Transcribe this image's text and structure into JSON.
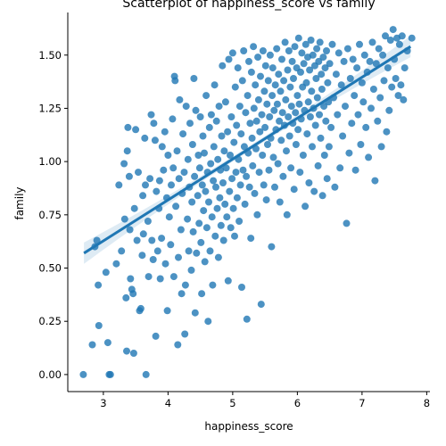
{
  "chart_data": {
    "type": "scatter",
    "title": "Scatterplot of happiness_score vs family",
    "xlabel": "happiness_score",
    "ylabel": "family",
    "xlim": [
      2.45,
      8.05
    ],
    "ylim": [
      -0.08,
      1.7
    ],
    "xticks": [
      3,
      4,
      5,
      6,
      7,
      8
    ],
    "xtick_labels": [
      "3",
      "4",
      "5",
      "6",
      "7",
      "8"
    ],
    "yticks": [
      0.0,
      0.25,
      0.5,
      0.75,
      1.0,
      1.25,
      1.5
    ],
    "ytick_labels": [
      "0.00",
      "0.25",
      "0.50",
      "0.75",
      "1.00",
      "1.25",
      "1.50"
    ],
    "grid": false,
    "regression": {
      "x": [
        2.7,
        7.75
      ],
      "y": [
        0.57,
        1.54
      ],
      "ci_halfwidth_ends": 0.05,
      "ci_halfwidth_center": 0.012,
      "color": "#1f77b4"
    },
    "point_color": "#1f77b4",
    "points": [
      [
        2.69,
        0.0
      ],
      [
        2.83,
        0.14
      ],
      [
        2.9,
        0.63
      ],
      [
        2.87,
        0.6
      ],
      [
        2.92,
        0.42
      ],
      [
        2.93,
        0.23
      ],
      [
        3.04,
        0.48
      ],
      [
        3.07,
        0.15
      ],
      [
        3.09,
        0.0
      ],
      [
        3.11,
        0.0
      ],
      [
        3.2,
        0.52
      ],
      [
        3.24,
        0.89
      ],
      [
        3.28,
        0.58
      ],
      [
        3.32,
        0.99
      ],
      [
        3.33,
        0.73
      ],
      [
        3.35,
        0.36
      ],
      [
        3.36,
        0.11
      ],
      [
        3.37,
        1.05
      ],
      [
        3.38,
        1.16
      ],
      [
        3.4,
        0.93
      ],
      [
        3.41,
        0.68
      ],
      [
        3.42,
        0.45
      ],
      [
        3.44,
        0.4
      ],
      [
        3.46,
        0.38
      ],
      [
        3.47,
        0.1
      ],
      [
        3.48,
        0.78
      ],
      [
        3.5,
        1.15
      ],
      [
        3.52,
        0.63
      ],
      [
        3.54,
        0.95
      ],
      [
        3.56,
        0.3
      ],
      [
        3.58,
        0.31
      ],
      [
        3.6,
        0.56
      ],
      [
        3.61,
        0.84
      ],
      [
        3.62,
        0.66
      ],
      [
        3.64,
        1.11
      ],
      [
        3.65,
        0.89
      ],
      [
        3.66,
        0.0
      ],
      [
        3.69,
        0.72
      ],
      [
        3.7,
        0.46
      ],
      [
        3.72,
        0.92
      ],
      [
        3.74,
        1.22
      ],
      [
        3.75,
        0.63
      ],
      [
        3.77,
        0.54
      ],
      [
        3.78,
        1.18
      ],
      [
        3.8,
        1.1
      ],
      [
        3.81,
        0.18
      ],
      [
        3.82,
        0.86
      ],
      [
        3.84,
        0.58
      ],
      [
        3.86,
        0.78
      ],
      [
        3.87,
        0.91
      ],
      [
        3.88,
        0.45
      ],
      [
        3.9,
        0.64
      ],
      [
        3.91,
        1.07
      ],
      [
        3.93,
        0.96
      ],
      [
        3.95,
        1.14
      ],
      [
        3.96,
        0.52
      ],
      [
        3.98,
        0.83
      ],
      [
        3.99,
        0.3
      ],
      [
        4.0,
        1.03
      ],
      [
        4.02,
        0.74
      ],
      [
        4.04,
        0.61
      ],
      [
        4.05,
        0.89
      ],
      [
        4.07,
        1.2
      ],
      [
        4.08,
        0.97
      ],
      [
        4.09,
        0.46
      ],
      [
        4.1,
        1.4
      ],
      [
        4.11,
        1.38
      ],
      [
        4.12,
        0.79
      ],
      [
        4.14,
        1.05
      ],
      [
        4.15,
        0.14
      ],
      [
        4.16,
        0.55
      ],
      [
        4.17,
        0.92
      ],
      [
        4.18,
        1.29
      ],
      [
        4.2,
        0.68
      ],
      [
        4.21,
        0.38
      ],
      [
        4.22,
        0.85
      ],
      [
        4.23,
        1.13
      ],
      [
        4.25,
        0.95
      ],
      [
        4.26,
        0.19
      ],
      [
        4.27,
        0.42
      ],
      [
        4.28,
        1.26
      ],
      [
        4.3,
        0.73
      ],
      [
        4.31,
        1.01
      ],
      [
        4.32,
        0.58
      ],
      [
        4.33,
        0.88
      ],
      [
        4.34,
        1.18
      ],
      [
        4.36,
        0.49
      ],
      [
        4.37,
        0.81
      ],
      [
        4.38,
        1.08
      ],
      [
        4.39,
        0.67
      ],
      [
        4.4,
        1.39
      ],
      [
        4.41,
        0.93
      ],
      [
        4.42,
        0.29
      ],
      [
        4.43,
        1.24
      ],
      [
        4.44,
        0.57
      ],
      [
        4.46,
        0.84
      ],
      [
        4.47,
        1.03
      ],
      [
        4.48,
        0.71
      ],
      [
        4.49,
        0.97
      ],
      [
        4.5,
        1.21
      ],
      [
        4.51,
        0.62
      ],
      [
        4.52,
        0.38
      ],
      [
        4.53,
        0.89
      ],
      [
        4.54,
        1.12
      ],
      [
        4.55,
        0.77
      ],
      [
        4.56,
        1.04
      ],
      [
        4.57,
        0.53
      ],
      [
        4.58,
        0.86
      ],
      [
        4.59,
        1.31
      ],
      [
        4.6,
        0.69
      ],
      [
        4.61,
        0.95
      ],
      [
        4.62,
        0.25
      ],
      [
        4.63,
        0.81
      ],
      [
        4.64,
        1.16
      ],
      [
        4.65,
        0.58
      ],
      [
        4.66,
        0.99
      ],
      [
        4.67,
        1.22
      ],
      [
        4.68,
        0.74
      ],
      [
        4.69,
        0.42
      ],
      [
        4.7,
        0.91
      ],
      [
        4.71,
        1.07
      ],
      [
        4.72,
        1.36
      ],
      [
        4.73,
        0.65
      ],
      [
        4.74,
        0.88
      ],
      [
        4.75,
        1.19
      ],
      [
        4.76,
        0.78
      ],
      [
        4.77,
        1.01
      ],
      [
        4.78,
        0.55
      ],
      [
        4.79,
        1.26
      ],
      [
        4.8,
        0.83
      ],
      [
        4.81,
        0.96
      ],
      [
        4.82,
        0.7
      ],
      [
        4.83,
        1.12
      ],
      [
        4.84,
        1.45
      ],
      [
        4.85,
        0.9
      ],
      [
        4.86,
        0.63
      ],
      [
        4.87,
        1.05
      ],
      [
        4.88,
        0.8
      ],
      [
        4.89,
        1.28
      ],
      [
        4.9,
        0.97
      ],
      [
        4.91,
        0.74
      ],
      [
        4.92,
        1.14
      ],
      [
        4.93,
        0.44
      ],
      [
        4.94,
        1.48
      ],
      [
        4.95,
        0.86
      ],
      [
        4.96,
        1.03
      ],
      [
        4.97,
        0.69
      ],
      [
        4.98,
        1.21
      ],
      [
        4.99,
        0.92
      ],
      [
        5.0,
        1.51
      ],
      [
        5.01,
        0.78
      ],
      [
        5.02,
        1.09
      ],
      [
        5.03,
        0.65
      ],
      [
        5.04,
        1.35
      ],
      [
        5.05,
        0.95
      ],
      [
        5.06,
        1.17
      ],
      [
        5.07,
        0.83
      ],
      [
        5.08,
        1.44
      ],
      [
        5.09,
        1.01
      ],
      [
        5.1,
        0.72
      ],
      [
        5.11,
        1.26
      ],
      [
        5.12,
        0.89
      ],
      [
        5.13,
        1.13
      ],
      [
        5.14,
        0.41
      ],
      [
        5.15,
        1.38
      ],
      [
        5.16,
        0.96
      ],
      [
        5.17,
        1.52
      ],
      [
        5.18,
        1.07
      ],
      [
        5.19,
        0.8
      ],
      [
        5.2,
        1.23
      ],
      [
        5.21,
        0.93
      ],
      [
        5.22,
        0.26
      ],
      [
        5.23,
        1.31
      ],
      [
        5.24,
        1.04
      ],
      [
        5.25,
        1.47
      ],
      [
        5.26,
        0.88
      ],
      [
        5.27,
        1.18
      ],
      [
        5.28,
        0.64
      ],
      [
        5.29,
        1.42
      ],
      [
        5.3,
        1.11
      ],
      [
        5.31,
        0.98
      ],
      [
        5.32,
        1.54
      ],
      [
        5.33,
        1.25
      ],
      [
        5.34,
        0.85
      ],
      [
        5.35,
        1.36
      ],
      [
        5.36,
        1.06
      ],
      [
        5.37,
        1.19
      ],
      [
        5.38,
        0.75
      ],
      [
        5.39,
        1.49
      ],
      [
        5.4,
        1.29
      ],
      [
        5.41,
        0.95
      ],
      [
        5.42,
        1.14
      ],
      [
        5.43,
        1.4
      ],
      [
        5.44,
        0.33
      ],
      [
        5.45,
        1.22
      ],
      [
        5.46,
        1.03
      ],
      [
        5.47,
        1.52
      ],
      [
        5.48,
        0.89
      ],
      [
        5.49,
        1.33
      ],
      [
        5.5,
        1.16
      ],
      [
        5.51,
        1.45
      ],
      [
        5.52,
        0.82
      ],
      [
        5.53,
        1.27
      ],
      [
        5.54,
        1.08
      ],
      [
        5.55,
        1.38
      ],
      [
        5.56,
        0.96
      ],
      [
        5.57,
        1.21
      ],
      [
        5.58,
        1.5
      ],
      [
        5.59,
        1.11
      ],
      [
        5.6,
        0.6
      ],
      [
        5.61,
        1.31
      ],
      [
        5.62,
        1.44
      ],
      [
        5.63,
        1.02
      ],
      [
        5.64,
        1.24
      ],
      [
        5.65,
        0.88
      ],
      [
        5.66,
        1.36
      ],
      [
        5.67,
        1.15
      ],
      [
        5.68,
        1.53
      ],
      [
        5.69,
        1.27
      ],
      [
        5.7,
        0.99
      ],
      [
        5.71,
        1.41
      ],
      [
        5.72,
        1.19
      ],
      [
        5.73,
        0.81
      ],
      [
        5.74,
        1.33
      ],
      [
        5.75,
        1.1
      ],
      [
        5.76,
        1.48
      ],
      [
        5.77,
        1.23
      ],
      [
        5.78,
        0.93
      ],
      [
        5.79,
        1.38
      ],
      [
        5.8,
        1.17
      ],
      [
        5.81,
        1.56
      ],
      [
        5.82,
        1.29
      ],
      [
        5.83,
        1.05
      ],
      [
        5.84,
        0.75
      ],
      [
        5.85,
        1.43
      ],
      [
        5.86,
        1.21
      ],
      [
        5.87,
        1.52
      ],
      [
        5.88,
        1.12
      ],
      [
        5.89,
        1.35
      ],
      [
        5.9,
        0.97
      ],
      [
        5.91,
        1.26
      ],
      [
        5.92,
        1.47
      ],
      [
        5.93,
        1.18
      ],
      [
        5.94,
        1.39
      ],
      [
        5.95,
        0.87
      ],
      [
        5.96,
        1.54
      ],
      [
        5.97,
        1.23
      ],
      [
        5.98,
        1.08
      ],
      [
        5.99,
        1.44
      ],
      [
        6.0,
        1.31
      ],
      [
        6.01,
        1.15
      ],
      [
        6.02,
        1.58
      ],
      [
        6.03,
        1.27
      ],
      [
        6.04,
        0.95
      ],
      [
        6.05,
        1.42
      ],
      [
        6.06,
        1.2
      ],
      [
        6.07,
        1.51
      ],
      [
        6.08,
        1.35
      ],
      [
        6.09,
        1.03
      ],
      [
        6.1,
        1.46
      ],
      [
        6.11,
        1.24
      ],
      [
        6.12,
        0.79
      ],
      [
        6.13,
        1.55
      ],
      [
        6.14,
        1.37
      ],
      [
        6.15,
        1.13
      ],
      [
        6.16,
        1.49
      ],
      [
        6.17,
        1.28
      ],
      [
        6.18,
        0.9
      ],
      [
        6.19,
        1.43
      ],
      [
        6.2,
        1.21
      ],
      [
        6.21,
        1.57
      ],
      [
        6.22,
        1.33
      ],
      [
        6.23,
        1.07
      ],
      [
        6.24,
        1.5
      ],
      [
        6.25,
        1.25
      ],
      [
        6.26,
        0.86
      ],
      [
        6.27,
        1.45
      ],
      [
        6.28,
        1.17
      ],
      [
        6.29,
        1.39
      ],
      [
        6.3,
        1.53
      ],
      [
        6.31,
        1.3
      ],
      [
        6.32,
        0.98
      ],
      [
        6.33,
        1.47
      ],
      [
        6.34,
        1.22
      ],
      [
        6.35,
        1.56
      ],
      [
        6.36,
        1.11
      ],
      [
        6.37,
        1.41
      ],
      [
        6.38,
        1.34
      ],
      [
        6.39,
        0.84
      ],
      [
        6.4,
        1.49
      ],
      [
        6.41,
        1.26
      ],
      [
        6.42,
        1.03
      ],
      [
        6.43,
        1.44
      ],
      [
        6.44,
        1.19
      ],
      [
        6.45,
        1.52
      ],
      [
        6.46,
        0.92
      ],
      [
        6.47,
        1.37
      ],
      [
        6.48,
        1.28
      ],
      [
        6.49,
        1.07
      ],
      [
        6.5,
        1.46
      ],
      [
        6.52,
        1.16
      ],
      [
        6.54,
        1.55
      ],
      [
        6.56,
        1.3
      ],
      [
        6.58,
        0.88
      ],
      [
        6.6,
        1.41
      ],
      [
        6.62,
        1.22
      ],
      [
        6.64,
        1.51
      ],
      [
        6.66,
        0.97
      ],
      [
        6.68,
        1.36
      ],
      [
        6.7,
        1.12
      ],
      [
        6.72,
        1.47
      ],
      [
        6.74,
        1.26
      ],
      [
        6.76,
        0.71
      ],
      [
        6.78,
        1.53
      ],
      [
        6.8,
        1.04
      ],
      [
        6.82,
        1.39
      ],
      [
        6.84,
        1.18
      ],
      [
        6.86,
        1.48
      ],
      [
        6.88,
        1.31
      ],
      [
        6.9,
        0.96
      ],
      [
        6.92,
        1.44
      ],
      [
        6.94,
        1.22
      ],
      [
        6.96,
        1.55
      ],
      [
        6.98,
        1.08
      ],
      [
        7.0,
        1.37
      ],
      [
        7.02,
        1.28
      ],
      [
        7.04,
        1.5
      ],
      [
        7.06,
        1.16
      ],
      [
        7.08,
        1.42
      ],
      [
        7.1,
        1.02
      ],
      [
        7.12,
        1.47
      ],
      [
        7.14,
        1.25
      ],
      [
        7.16,
        1.56
      ],
      [
        7.18,
        1.34
      ],
      [
        7.2,
        0.91
      ],
      [
        7.22,
        1.46
      ],
      [
        7.24,
        1.19
      ],
      [
        7.26,
        1.53
      ],
      [
        7.28,
        1.3
      ],
      [
        7.3,
        1.07
      ],
      [
        7.32,
        1.5
      ],
      [
        7.34,
        1.38
      ],
      [
        7.36,
        1.59
      ],
      [
        7.38,
        1.14
      ],
      [
        7.4,
        1.44
      ],
      [
        7.42,
        1.24
      ],
      [
        7.44,
        1.57
      ],
      [
        7.46,
        1.35
      ],
      [
        7.48,
        1.62
      ],
      [
        7.5,
        1.48
      ],
      [
        7.52,
        1.39
      ],
      [
        7.54,
        1.58
      ],
      [
        7.56,
        1.31
      ],
      [
        7.58,
        1.55
      ],
      [
        7.6,
        1.36
      ],
      [
        7.62,
        1.59
      ],
      [
        7.64,
        1.29
      ],
      [
        7.66,
        1.44
      ],
      [
        7.7,
        1.52
      ],
      [
        7.77,
        1.58
      ]
    ]
  }
}
